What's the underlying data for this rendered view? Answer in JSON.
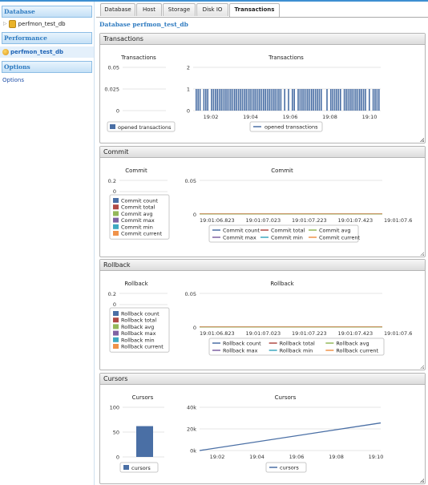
{
  "sidebar": {
    "database_header": "Database",
    "db_item": "perfmon_test_db",
    "performance_header": "Performance",
    "perf_item": "perfmon_test_db",
    "options_header": "Options",
    "options_link": "Options"
  },
  "tabs": [
    {
      "label": "Database"
    },
    {
      "label": "Host"
    },
    {
      "label": "Storage"
    },
    {
      "label": "Disk IO"
    },
    {
      "label": "Transactions"
    }
  ],
  "page_title": "Database perfmon_test_db",
  "panels": {
    "transactions": {
      "header": "Transactions"
    },
    "commit": {
      "header": "Commit"
    },
    "rollback": {
      "header": "Rollback"
    },
    "cursors": {
      "header": "Cursors"
    }
  },
  "colors": {
    "accent": "#3d8fd1",
    "series_blue": "#4a6fa5",
    "series_red": "#b04a45",
    "series_green": "#94b85a",
    "series_purple": "#7f63a3",
    "series_teal": "#3fa9c1",
    "series_orange": "#f0924a"
  },
  "chart_data": [
    {
      "id": "transactions_small",
      "type": "bar",
      "title": "Transactions",
      "ylim": [
        0,
        0.05
      ],
      "yticks": [
        "0.05",
        "0.025",
        "0"
      ],
      "series": [
        {
          "name": "opened transactions",
          "values": []
        }
      ]
    },
    {
      "id": "transactions_main",
      "type": "bar",
      "title": "Transactions",
      "ylim": [
        0,
        2
      ],
      "yticks": [
        "2",
        "1",
        "0"
      ],
      "xticks": [
        "19:02",
        "19:04",
        "19:06",
        "19:08",
        "19:10"
      ],
      "series": [
        {
          "name": "opened transactions",
          "values": [
            1
          ]
        }
      ],
      "note_gaps_at_fraction": [
        0.04,
        0.085,
        0.47,
        0.49,
        0.515,
        0.545,
        0.685,
        0.705,
        0.725,
        0.79,
        0.93,
        0.95
      ]
    },
    {
      "id": "commit_small",
      "type": "bar",
      "title": "Commit",
      "ylim": [
        0,
        0.2
      ],
      "yticks": [
        "0.2",
        "0"
      ],
      "series": [
        {
          "name": "Commit count",
          "values": []
        },
        {
          "name": "Commit total",
          "values": []
        },
        {
          "name": "Commit avg",
          "values": []
        },
        {
          "name": "Commit max",
          "values": []
        },
        {
          "name": "Commit min",
          "values": []
        },
        {
          "name": "Commit current",
          "values": []
        }
      ]
    },
    {
      "id": "commit_main",
      "type": "line",
      "title": "Commit",
      "ylim": [
        0,
        0.05
      ],
      "yticks": [
        "0.05",
        "0"
      ],
      "xticks": [
        "19:01:06.823",
        "19:01:07.023",
        "19:01:07.223",
        "19:01:07.423",
        "19:01:07.6"
      ],
      "series": [
        {
          "name": "Commit count",
          "values": [
            0,
            0
          ]
        },
        {
          "name": "Commit total",
          "values": [
            0,
            0
          ]
        },
        {
          "name": "Commit avg",
          "values": [
            0,
            0
          ]
        },
        {
          "name": "Commit max",
          "values": [
            0,
            0
          ]
        },
        {
          "name": "Commit min",
          "values": [
            0,
            0
          ]
        },
        {
          "name": "Commit current",
          "values": [
            0,
            0
          ]
        }
      ]
    },
    {
      "id": "rollback_small",
      "type": "bar",
      "title": "Rollback",
      "ylim": [
        0,
        0.2
      ],
      "yticks": [
        "0.2",
        "0"
      ],
      "series": [
        {
          "name": "Rollback count",
          "values": []
        },
        {
          "name": "Rollback total",
          "values": []
        },
        {
          "name": "Rollback avg",
          "values": []
        },
        {
          "name": "Rollback max",
          "values": []
        },
        {
          "name": "Rollback min",
          "values": []
        },
        {
          "name": "Rollback current",
          "values": []
        }
      ]
    },
    {
      "id": "rollback_main",
      "type": "line",
      "title": "Rollback",
      "ylim": [
        0,
        0.05
      ],
      "yticks": [
        "0.05",
        "0"
      ],
      "xticks": [
        "19:01:06.823",
        "19:01:07.023",
        "19:01:07.223",
        "19:01:07.423",
        "19:01:07.6"
      ],
      "series": [
        {
          "name": "Rollback count",
          "values": [
            0,
            0
          ]
        },
        {
          "name": "Rollback total",
          "values": [
            0,
            0
          ]
        },
        {
          "name": "Rollback avg",
          "values": [
            0,
            0
          ]
        },
        {
          "name": "Rollback max",
          "values": [
            0,
            0
          ]
        },
        {
          "name": "Rollback min",
          "values": [
            0,
            0
          ]
        },
        {
          "name": "Rollback current",
          "values": [
            0,
            0
          ]
        }
      ]
    },
    {
      "id": "cursors_small",
      "type": "bar",
      "title": "Cursors",
      "ylim": [
        0,
        100
      ],
      "yticks": [
        "100",
        "50",
        "0"
      ],
      "series": [
        {
          "name": "cursors",
          "values": [
            62
          ]
        }
      ]
    },
    {
      "id": "cursors_main",
      "type": "line",
      "title": "Cursors",
      "ylim": [
        0,
        40000
      ],
      "yticks": [
        "40k",
        "20k",
        "0k"
      ],
      "xticks": [
        "19:02",
        "19:04",
        "19:06",
        "19:08",
        "19:10"
      ],
      "x": [
        0,
        1
      ],
      "series": [
        {
          "name": "cursors",
          "values": [
            0,
            25500
          ]
        }
      ]
    }
  ]
}
